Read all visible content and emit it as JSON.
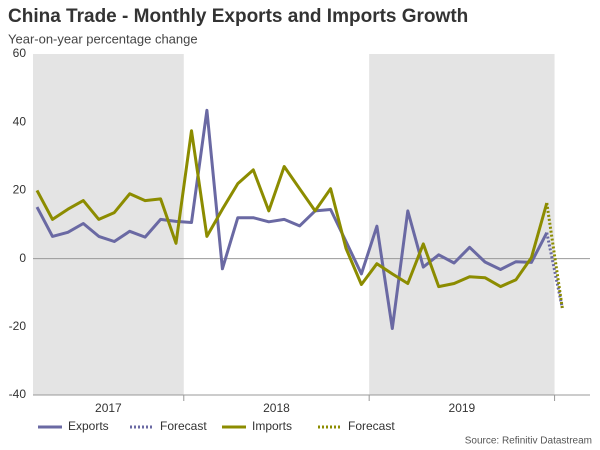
{
  "chart_data": {
    "type": "line",
    "title": "China Trade - Monthly Exports and Imports Growth",
    "subtitle": "Year-on-year percentage change",
    "source": "Source: Refinitiv Datastream",
    "categories": [
      "2017",
      "2017",
      "2017",
      "2017",
      "2017",
      "2017",
      "2017",
      "2017",
      "2017",
      "2017",
      "2018",
      "2018",
      "2018",
      "2018",
      "2018",
      "2018",
      "2018",
      "2018",
      "2018",
      "2018",
      "2018",
      "2018",
      "2019",
      "2019",
      "2019",
      "2019",
      "2019",
      "2019",
      "2019",
      "2019",
      "2019",
      "2019",
      "2019",
      "2019",
      null
    ],
    "shaded_years": [
      "2017",
      "2019"
    ],
    "ylim": [
      -40,
      60
    ],
    "yticks": [
      -40,
      -20,
      0,
      20,
      40,
      60
    ],
    "series": [
      {
        "name": "Exports",
        "color": "#6a69a3",
        "dash": false,
        "values": [
          15.1,
          6.5,
          7.7,
          10.3,
          6.5,
          5.0,
          8.0,
          6.3,
          11.5,
          10.9,
          10.6,
          43.5,
          -3.0,
          12.0,
          12.0,
          10.8,
          11.5,
          9.6,
          14.0,
          14.4,
          5.0,
          -4.5,
          9.5,
          -20.5,
          14.0,
          -2.5,
          1.1,
          -1.3,
          3.3,
          -1.0,
          -3.2,
          -0.9,
          -1.1,
          7.6,
          null
        ]
      },
      {
        "name": "Forecast",
        "color": "#6a69a3",
        "dash": true,
        "values": [
          null,
          null,
          null,
          null,
          null,
          null,
          null,
          null,
          null,
          null,
          null,
          null,
          null,
          null,
          null,
          null,
          null,
          null,
          null,
          null,
          null,
          null,
          null,
          null,
          null,
          null,
          null,
          null,
          null,
          null,
          null,
          null,
          null,
          7.6,
          -14.5
        ]
      },
      {
        "name": "Imports",
        "color": "#8c8c00",
        "dash": false,
        "values": [
          20.0,
          11.5,
          14.5,
          17.0,
          11.5,
          13.5,
          19.0,
          17.0,
          17.5,
          4.5,
          37.5,
          6.5,
          14.5,
          22.0,
          26.0,
          14.0,
          27.0,
          20.5,
          14.0,
          20.5,
          3.0,
          -7.6,
          -1.5,
          -4.5,
          -7.3,
          4.3,
          -8.2,
          -7.3,
          -5.3,
          -5.6,
          -8.2,
          -6.2,
          0.3,
          16.3,
          null
        ]
      },
      {
        "name": "Forecast",
        "color": "#8c8c00",
        "dash": true,
        "values": [
          null,
          null,
          null,
          null,
          null,
          null,
          null,
          null,
          null,
          null,
          null,
          null,
          null,
          null,
          null,
          null,
          null,
          null,
          null,
          null,
          null,
          null,
          null,
          null,
          null,
          null,
          null,
          null,
          null,
          null,
          null,
          null,
          null,
          16.3,
          -14.5
        ]
      }
    ]
  }
}
